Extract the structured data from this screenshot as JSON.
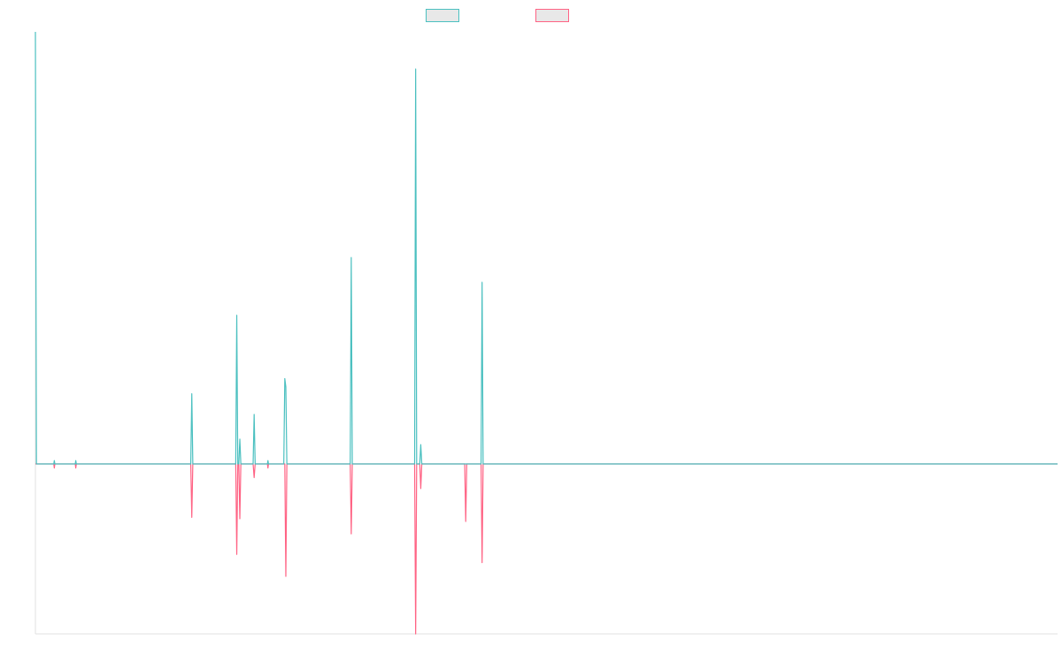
{
  "chart_data": {
    "type": "line",
    "title": "",
    "xlabel": "",
    "ylabel": "",
    "x_range": [
      0,
      1000
    ],
    "y_range": [
      -0.62,
      1.57
    ],
    "grid": false,
    "legend_position": "top-center",
    "series": [
      {
        "color": "#4bc0c0",
        "points": [
          [
            0,
            1.57
          ],
          [
            1,
            0
          ],
          [
            18,
            0
          ],
          [
            18.5,
            0.012
          ],
          [
            19,
            0
          ],
          [
            39,
            0
          ],
          [
            39.5,
            0.012
          ],
          [
            40,
            0
          ],
          [
            152,
            0
          ],
          [
            153,
            0.255
          ],
          [
            154,
            0
          ],
          [
            196,
            0
          ],
          [
            197,
            0.54
          ],
          [
            198,
            0
          ],
          [
            199,
            0
          ],
          [
            200,
            0.09
          ],
          [
            201,
            0
          ],
          [
            213,
            0
          ],
          [
            214,
            0.18
          ],
          [
            215,
            0
          ],
          [
            227,
            0
          ],
          [
            227.5,
            0.012
          ],
          [
            228,
            0
          ],
          [
            243,
            0
          ],
          [
            244,
            0.31
          ],
          [
            245,
            0.28
          ],
          [
            246,
            0
          ],
          [
            308,
            0
          ],
          [
            309,
            0.75
          ],
          [
            310,
            0
          ],
          [
            371,
            0
          ],
          [
            372,
            1.435
          ],
          [
            373,
            0
          ],
          [
            376,
            0
          ],
          [
            377,
            0.07
          ],
          [
            378,
            0
          ],
          [
            436,
            0
          ],
          [
            437,
            0.66
          ],
          [
            438,
            0
          ],
          [
            1000,
            0
          ]
        ]
      },
      {
        "color": "#ff6384",
        "points": [
          [
            0,
            0
          ],
          [
            18,
            0
          ],
          [
            18.5,
            -0.015
          ],
          [
            19,
            0
          ],
          [
            39,
            0
          ],
          [
            39.5,
            -0.015
          ],
          [
            40,
            0
          ],
          [
            152,
            0
          ],
          [
            153,
            -0.195
          ],
          [
            154,
            0
          ],
          [
            196,
            0
          ],
          [
            197,
            -0.33
          ],
          [
            198,
            0
          ],
          [
            199,
            0
          ],
          [
            200,
            -0.2
          ],
          [
            201,
            0
          ],
          [
            213,
            0
          ],
          [
            214,
            -0.05
          ],
          [
            215,
            0
          ],
          [
            227,
            0
          ],
          [
            227.5,
            -0.015
          ],
          [
            228,
            0
          ],
          [
            244,
            0
          ],
          [
            245,
            -0.41
          ],
          [
            246,
            0
          ],
          [
            308,
            0
          ],
          [
            309,
            -0.255
          ],
          [
            310,
            0
          ],
          [
            371,
            0
          ],
          [
            372,
            -0.62
          ],
          [
            373,
            0
          ],
          [
            376,
            0
          ],
          [
            377,
            -0.09
          ],
          [
            378,
            0
          ],
          [
            420,
            0
          ],
          [
            421,
            -0.21
          ],
          [
            422,
            0
          ],
          [
            436,
            0
          ],
          [
            437,
            -0.36
          ],
          [
            438,
            0
          ],
          [
            1000,
            0
          ]
        ]
      }
    ]
  }
}
